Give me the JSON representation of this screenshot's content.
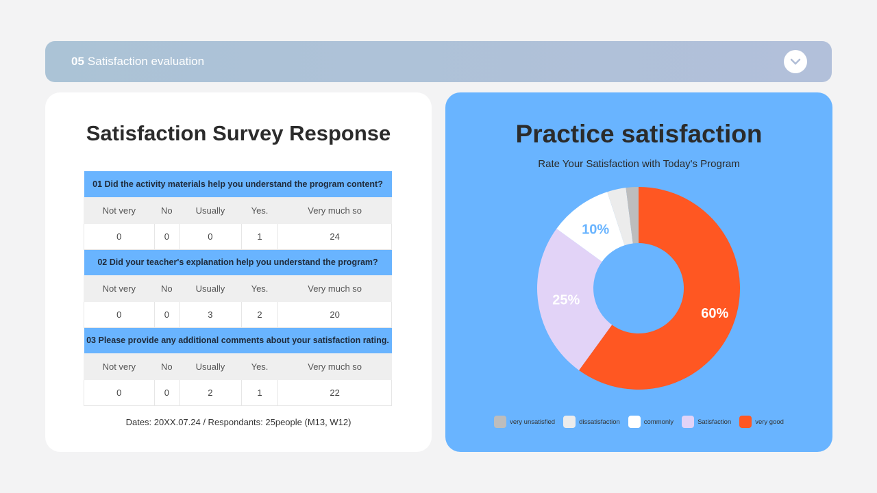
{
  "header": {
    "number": "05",
    "title": "Satisfaction evaluation"
  },
  "survey": {
    "title": "Satisfaction Survey Response",
    "columns": [
      "Not very",
      "No",
      "Usually",
      "Yes.",
      "Very much so"
    ],
    "questions": [
      {
        "q": "01 Did the activity materials help you understand the program content?",
        "values": [
          "0",
          "0",
          "0",
          "1",
          "24"
        ]
      },
      {
        "q": "02 Did your teacher's explanation help you understand the program?",
        "values": [
          "0",
          "0",
          "3",
          "2",
          "20"
        ]
      },
      {
        "q": "03 Please provide any additional comments about your satisfaction rating.",
        "values": [
          "0",
          "0",
          "2",
          "1",
          "22"
        ]
      }
    ],
    "footer": "Dates: 20XX.07.24  / Respondants: 25people (M13, W12)"
  },
  "chart_data": {
    "type": "pie",
    "title": "Practice satisfaction",
    "subtitle": "Rate Your Satisfaction with Today's Program",
    "legend_position": "bottom",
    "series": [
      {
        "name": "very good",
        "value": 60,
        "color": "#ff5722",
        "label": "60%"
      },
      {
        "name": "Satisfaction",
        "value": 25,
        "color": "#e2d3f7",
        "label": "25%"
      },
      {
        "name": "commonly",
        "value": 10,
        "color": "#ffffff",
        "label": "10%"
      },
      {
        "name": "dissatisfaction",
        "value": 3,
        "color": "#ececec",
        "label": ""
      },
      {
        "name": "very unsatisfied",
        "value": 2,
        "color": "#bdbdbd",
        "label": ""
      }
    ],
    "legend_order": [
      "very unsatisfied",
      "dissatisfaction",
      "commonly",
      "Satisfaction",
      "very good"
    ]
  }
}
